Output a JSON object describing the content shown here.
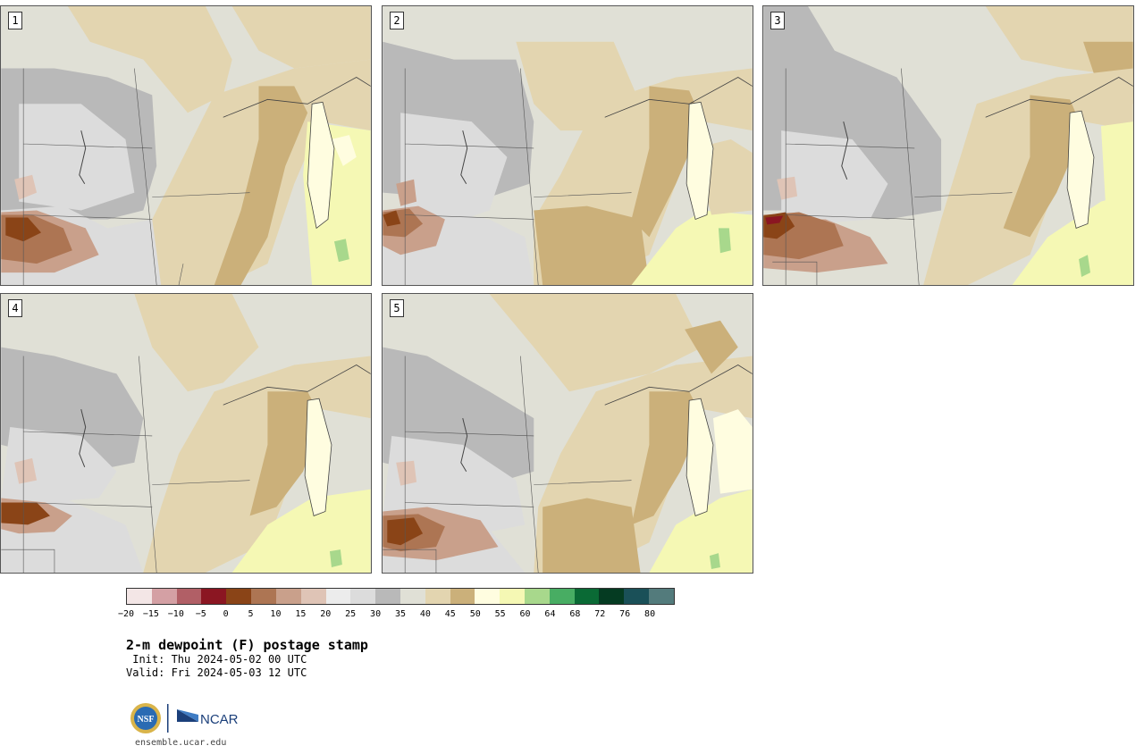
{
  "panels": [
    {
      "number": "1"
    },
    {
      "number": "2"
    },
    {
      "number": "3"
    },
    {
      "number": "4"
    },
    {
      "number": "5"
    }
  ],
  "colorbar": {
    "colors": [
      "#f3e6e6",
      "#d4a0a4",
      "#b15f66",
      "#8b1622",
      "#8a4417",
      "#ad7553",
      "#c9a08b",
      "#dfc4b6",
      "#ececec",
      "#dcdcdc",
      "#b9b9b9",
      "#e0e0d6",
      "#e3d5b0",
      "#cbb07a",
      "#fffde0",
      "#f5f8b4",
      "#a8d88c",
      "#48ad63",
      "#0a6a35",
      "#053b22",
      "#1a5058",
      "#537b7c"
    ],
    "tick_labels": [
      "−20",
      "−15",
      "−10",
      "−5",
      "0",
      "5",
      "10",
      "15",
      "20",
      "25",
      "30",
      "35",
      "40",
      "45",
      "50",
      "55",
      "60",
      "64",
      "68",
      "72",
      "76",
      "80"
    ]
  },
  "title": "2-m dewpoint (F) postage stamp",
  "init": " Init: Thu 2024-05-02 00 UTC",
  "valid": "Valid: Fri 2024-05-03 12 UTC",
  "logos": {
    "nsf_text": "NSF",
    "ncar_text": "NCAR"
  },
  "site": "ensemble.ucar.edu"
}
